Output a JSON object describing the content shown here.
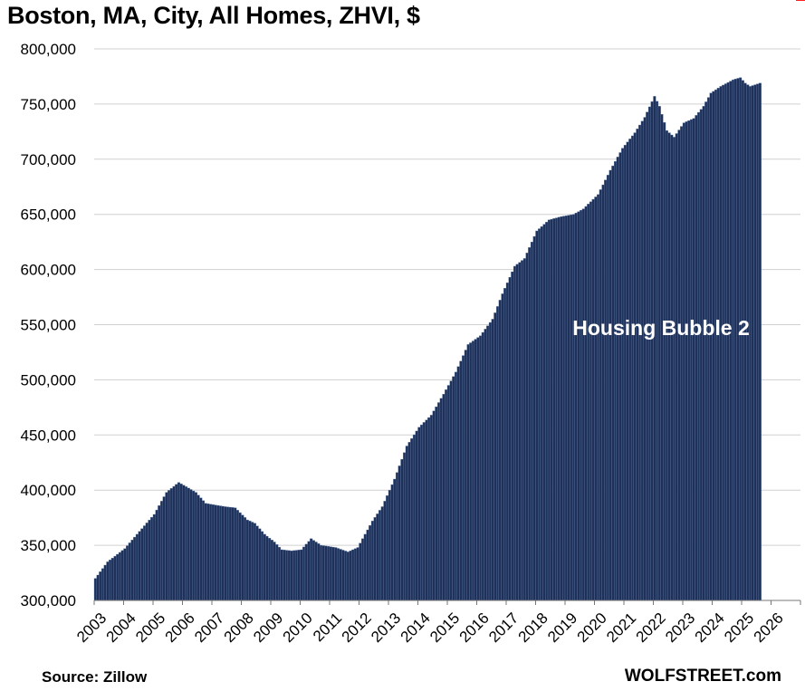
{
  "chart_data": {
    "type": "bar",
    "title": "Boston, MA, City, All Homes, ZHVI, $",
    "xlabel": "",
    "ylabel": "",
    "ylim": [
      300000,
      800000
    ],
    "y_ticks": [
      300000,
      350000,
      400000,
      450000,
      500000,
      550000,
      600000,
      650000,
      700000,
      750000,
      800000
    ],
    "y_tick_labels": [
      "300,000",
      "350,000",
      "400,000",
      "450,000",
      "500,000",
      "550,000",
      "600,000",
      "650,000",
      "700,000",
      "750,000",
      "800,000"
    ],
    "x_tick_labels": [
      "2003",
      "2004",
      "2005",
      "2006",
      "2007",
      "2008",
      "2009",
      "2010",
      "2011",
      "2012",
      "2013",
      "2014",
      "2015",
      "2016",
      "2017",
      "2018",
      "2019",
      "2020",
      "2021",
      "2022",
      "2023",
      "2024",
      "2025",
      "2026"
    ],
    "frequency": "monthly",
    "start": "2003-01",
    "anchors": [
      [
        "2003-01",
        320000
      ],
      [
        "2003-06",
        335000
      ],
      [
        "2004-01",
        347000
      ],
      [
        "2004-06",
        360000
      ],
      [
        "2005-01",
        378000
      ],
      [
        "2005-06",
        398000
      ],
      [
        "2005-11",
        407000
      ],
      [
        "2006-06",
        398000
      ],
      [
        "2006-10",
        388000
      ],
      [
        "2007-06",
        385000
      ],
      [
        "2007-10",
        384000
      ],
      [
        "2008-03",
        373000
      ],
      [
        "2008-06",
        370000
      ],
      [
        "2008-10",
        360000
      ],
      [
        "2009-02",
        353000
      ],
      [
        "2009-05",
        346000
      ],
      [
        "2009-09",
        345000
      ],
      [
        "2010-01",
        346000
      ],
      [
        "2010-05",
        356000
      ],
      [
        "2010-09",
        350000
      ],
      [
        "2011-03",
        348000
      ],
      [
        "2011-08",
        344000
      ],
      [
        "2011-12",
        348000
      ],
      [
        "2012-03",
        360000
      ],
      [
        "2012-06",
        372000
      ],
      [
        "2012-10",
        385000
      ],
      [
        "2013-03",
        410000
      ],
      [
        "2013-08",
        440000
      ],
      [
        "2014-01",
        457000
      ],
      [
        "2014-06",
        468000
      ],
      [
        "2014-11",
        487000
      ],
      [
        "2015-04",
        507000
      ],
      [
        "2015-09",
        532000
      ],
      [
        "2016-02",
        540000
      ],
      [
        "2016-07",
        555000
      ],
      [
        "2016-11",
        578000
      ],
      [
        "2017-04",
        603000
      ],
      [
        "2017-08",
        610000
      ],
      [
        "2018-01",
        635000
      ],
      [
        "2018-06",
        645000
      ],
      [
        "2018-11",
        648000
      ],
      [
        "2019-04",
        650000
      ],
      [
        "2019-08",
        655000
      ],
      [
        "2020-02",
        668000
      ],
      [
        "2020-07",
        690000
      ],
      [
        "2020-12",
        710000
      ],
      [
        "2021-05",
        724000
      ],
      [
        "2021-09",
        738000
      ],
      [
        "2022-01",
        757000
      ],
      [
        "2022-03",
        748000
      ],
      [
        "2022-06",
        726000
      ],
      [
        "2022-09",
        720000
      ],
      [
        "2023-01",
        733000
      ],
      [
        "2023-05",
        737000
      ],
      [
        "2023-09",
        748000
      ],
      [
        "2023-12",
        760000
      ],
      [
        "2024-04",
        766000
      ],
      [
        "2024-09",
        772000
      ],
      [
        "2024-12",
        774000
      ],
      [
        "2025-02",
        769000
      ],
      [
        "2025-04",
        766000
      ],
      [
        "2025-08",
        769000
      ]
    ],
    "annotations": [
      "Housing Bubble 2"
    ],
    "colors": {
      "bar_fill": "#1f3158",
      "bar_edge": "#5a7aa8",
      "grid": "#d0d0d0",
      "axis": "#777777",
      "title_accent": "#ff2020"
    }
  },
  "footer": {
    "source": "Source: Zillow",
    "brand": "WOLFSTREET.com"
  }
}
